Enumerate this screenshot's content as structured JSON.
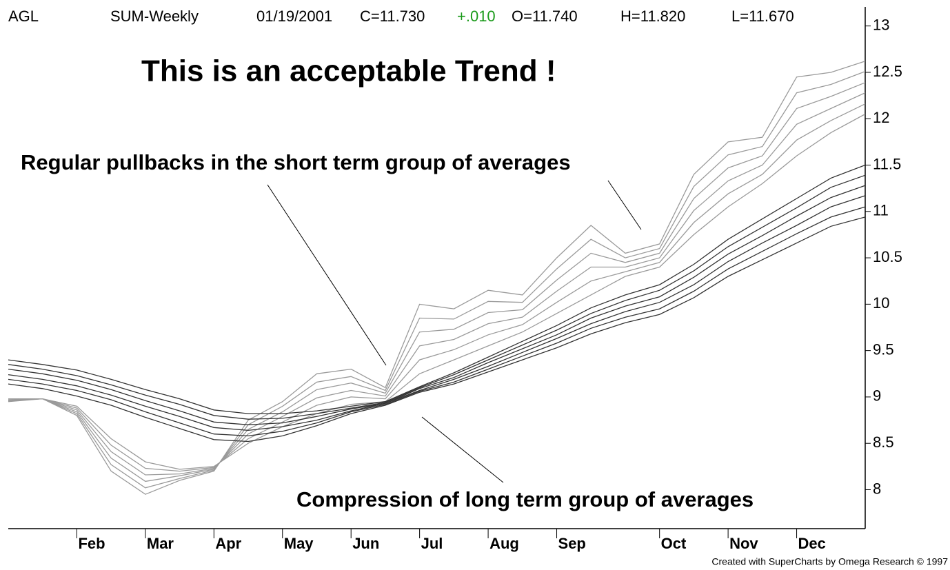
{
  "chart_data": {
    "type": "line",
    "header": [
      "AGL",
      "SUM-Weekly",
      "01/19/2001",
      "C=11.730",
      "+.010",
      "O=11.740",
      "H=11.820",
      "L=11.670"
    ],
    "header_colors": [
      "#000000",
      "#000000",
      "#000000",
      "#000000",
      "#1a9a1a",
      "#000000",
      "#000000",
      "#000000"
    ],
    "title": "This is an acceptable Trend !",
    "annotations": [
      "Regular pullbacks in the short term group of averages",
      "Compression of long term group of averages"
    ],
    "footer": "Created with SuperCharts by Omega Research © 1997",
    "categories": [
      null,
      null,
      "Feb",
      null,
      "Mar",
      null,
      "Apr",
      null,
      "May",
      null,
      "Jun",
      null,
      "Jul",
      null,
      "Aug",
      null,
      "Sep",
      null,
      null,
      "Oct",
      null,
      "Nov",
      null,
      "Dec",
      null,
      null
    ],
    "ylim": [
      7.58,
      13.28
    ],
    "yticks": [
      8,
      8.5,
      9,
      9.5,
      10,
      10.5,
      11,
      11.5,
      12,
      12.5,
      13
    ],
    "series": [
      {
        "color": "#9a9a9a",
        "values": [
          8.98,
          8.98,
          8.8,
          8.2,
          7.95,
          8.1,
          8.2,
          8.75,
          8.95,
          9.25,
          9.3,
          9.1,
          10.0,
          9.95,
          10.15,
          10.1,
          10.5,
          10.85,
          10.55,
          10.65,
          11.4,
          11.75,
          11.8,
          12.45,
          12.5,
          12.62
        ]
      },
      {
        "color": "#9a9a9a",
        "values": [
          8.97,
          8.98,
          8.82,
          8.27,
          8.02,
          8.12,
          8.21,
          8.7,
          8.9,
          9.16,
          9.22,
          9.07,
          9.85,
          9.84,
          10.03,
          10.02,
          10.38,
          10.7,
          10.5,
          10.6,
          11.27,
          11.61,
          11.7,
          12.28,
          12.37,
          12.51
        ]
      },
      {
        "color": "#9a9a9a",
        "values": [
          8.97,
          8.98,
          8.84,
          8.34,
          8.09,
          8.15,
          8.22,
          8.65,
          8.84,
          9.08,
          9.15,
          9.04,
          9.7,
          9.73,
          9.91,
          9.94,
          10.26,
          10.55,
          10.45,
          10.55,
          11.14,
          11.47,
          11.6,
          12.11,
          12.24,
          12.39
        ]
      },
      {
        "color": "#9a9a9a",
        "values": [
          8.96,
          8.98,
          8.86,
          8.41,
          8.16,
          8.17,
          8.23,
          8.6,
          8.79,
          8.99,
          9.07,
          9.01,
          9.55,
          9.62,
          9.79,
          9.86,
          10.14,
          10.4,
          10.4,
          10.5,
          11.01,
          11.33,
          11.5,
          11.94,
          12.11,
          12.28
        ]
      },
      {
        "color": "#9a9a9a",
        "values": [
          8.96,
          8.98,
          8.88,
          8.48,
          8.23,
          8.2,
          8.24,
          8.55,
          8.73,
          8.91,
          9.0,
          8.98,
          9.4,
          9.51,
          9.67,
          9.78,
          10.02,
          10.25,
          10.35,
          10.45,
          10.88,
          11.19,
          11.4,
          11.77,
          11.98,
          12.16
        ]
      },
      {
        "color": "#9a9a9a",
        "values": [
          8.95,
          8.98,
          8.9,
          8.55,
          8.3,
          8.22,
          8.25,
          8.5,
          8.68,
          8.82,
          8.92,
          8.95,
          9.25,
          9.4,
          9.55,
          9.7,
          9.9,
          10.1,
          10.3,
          10.4,
          10.75,
          11.05,
          11.3,
          11.6,
          11.85,
          12.05
        ]
      },
      {
        "color": "#333333",
        "values": [
          9.4,
          9.35,
          9.29,
          9.19,
          9.08,
          8.98,
          8.86,
          8.82,
          8.82,
          8.85,
          8.9,
          8.95,
          9.11,
          9.26,
          9.43,
          9.6,
          9.77,
          9.96,
          10.1,
          10.21,
          10.43,
          10.7,
          10.92,
          11.14,
          11.36,
          11.5
        ]
      },
      {
        "color": "#333333",
        "values": [
          9.35,
          9.3,
          9.23,
          9.13,
          9.02,
          8.92,
          8.8,
          8.76,
          8.77,
          8.82,
          8.88,
          8.94,
          9.1,
          9.24,
          9.4,
          9.56,
          9.72,
          9.9,
          10.04,
          10.15,
          10.36,
          10.62,
          10.83,
          11.04,
          11.26,
          11.39
        ]
      },
      {
        "color": "#333333",
        "values": [
          9.3,
          9.25,
          9.18,
          9.08,
          8.96,
          8.85,
          8.73,
          8.7,
          8.72,
          8.79,
          8.87,
          8.93,
          9.09,
          9.21,
          9.37,
          9.52,
          9.67,
          9.85,
          9.98,
          10.08,
          10.29,
          10.54,
          10.74,
          10.95,
          11.15,
          11.28
        ]
      },
      {
        "color": "#333333",
        "values": [
          9.24,
          9.19,
          9.12,
          9.02,
          8.9,
          8.79,
          8.67,
          8.64,
          8.68,
          8.75,
          8.85,
          8.93,
          9.07,
          9.19,
          9.33,
          9.48,
          9.63,
          9.79,
          9.92,
          10.02,
          10.21,
          10.46,
          10.66,
          10.85,
          11.05,
          11.17
        ]
      },
      {
        "color": "#333333",
        "values": [
          9.19,
          9.14,
          9.07,
          8.97,
          8.84,
          8.72,
          8.6,
          8.58,
          8.63,
          8.72,
          8.84,
          8.92,
          9.06,
          9.16,
          9.3,
          9.44,
          9.58,
          9.74,
          9.86,
          9.95,
          10.14,
          10.38,
          10.57,
          10.76,
          10.94,
          11.05
        ]
      },
      {
        "color": "#333333",
        "values": [
          9.14,
          9.09,
          9.01,
          8.91,
          8.78,
          8.66,
          8.54,
          8.52,
          8.58,
          8.69,
          8.82,
          8.91,
          9.05,
          9.14,
          9.27,
          9.4,
          9.53,
          9.68,
          9.8,
          9.89,
          10.07,
          10.3,
          10.48,
          10.66,
          10.84,
          10.94
        ]
      }
    ]
  }
}
